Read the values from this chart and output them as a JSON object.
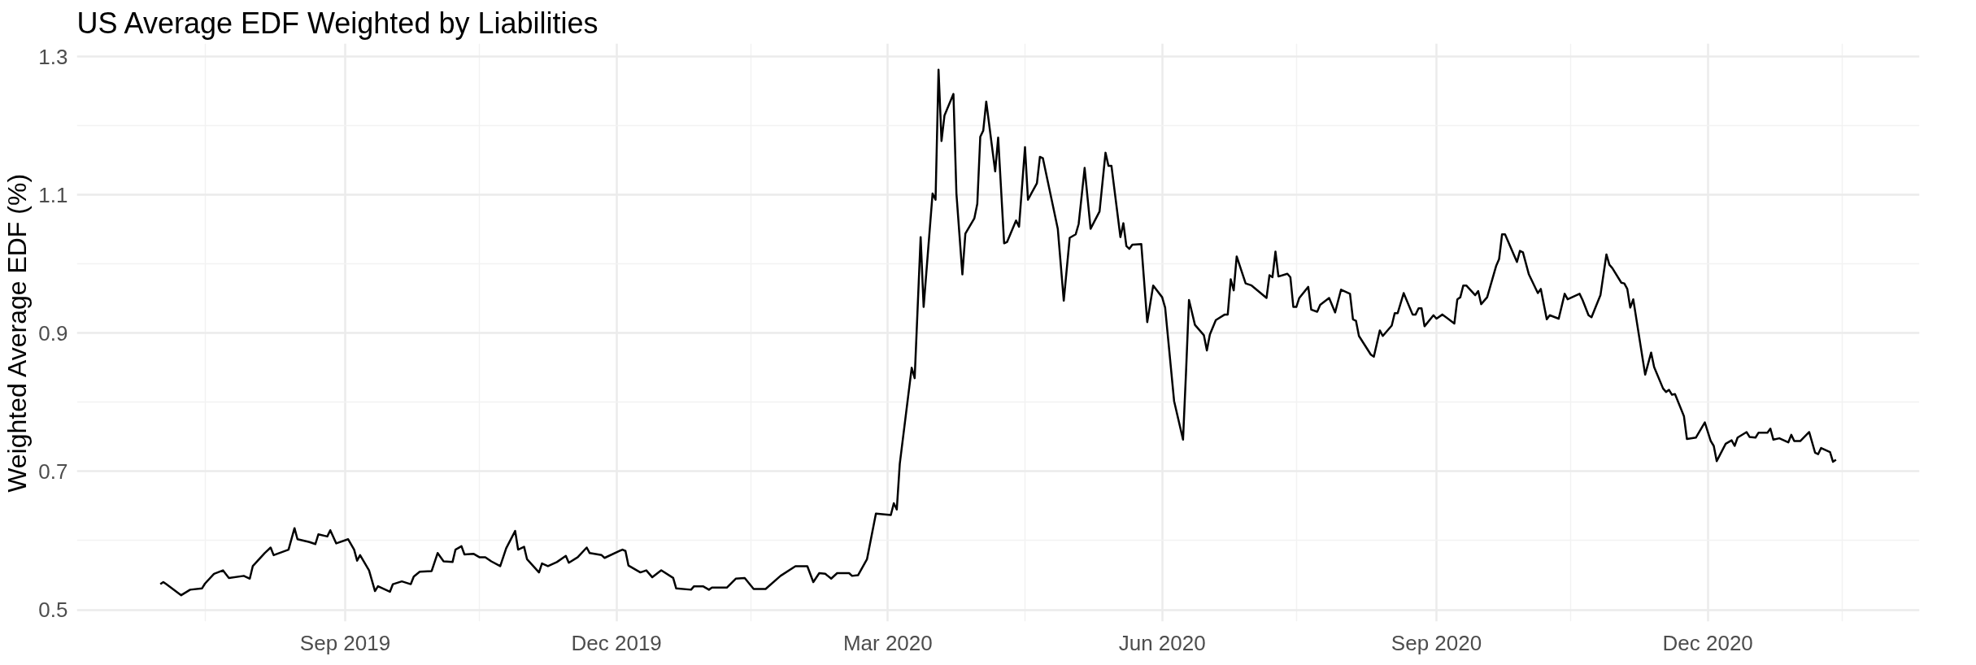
{
  "chart_data": {
    "type": "line",
    "title": "US Average EDF Weighted by Liabilities",
    "ylabel": "Weighted Average EDF (%)",
    "x": [
      "2019-07-01",
      "2019-07-02",
      "2019-07-03",
      "2019-07-08",
      "2019-07-11",
      "2019-07-15",
      "2019-07-16",
      "2019-07-19",
      "2019-07-22",
      "2019-07-24",
      "2019-07-29",
      "2019-07-31",
      "2019-08-01",
      "2019-08-05",
      "2019-08-07",
      "2019-08-08",
      "2019-08-13",
      "2019-08-15",
      "2019-08-16",
      "2019-08-20",
      "2019-08-22",
      "2019-08-23",
      "2019-08-26",
      "2019-08-27",
      "2019-08-29",
      "2019-09-02",
      "2019-09-04",
      "2019-09-05",
      "2019-09-06",
      "2019-09-09",
      "2019-09-11",
      "2019-09-12",
      "2019-09-16",
      "2019-09-17",
      "2019-09-20",
      "2019-09-23",
      "2019-09-24",
      "2019-09-26",
      "2019-09-30",
      "2019-10-02",
      "2019-10-04",
      "2019-10-07",
      "2019-10-08",
      "2019-10-10",
      "2019-10-11",
      "2019-10-14",
      "2019-10-16",
      "2019-10-18",
      "2019-10-20",
      "2019-10-23",
      "2019-10-25",
      "2019-10-28",
      "2019-10-29",
      "2019-10-31",
      "2019-11-01",
      "2019-11-05",
      "2019-11-06",
      "2019-11-08",
      "2019-11-11",
      "2019-11-14",
      "2019-11-15",
      "2019-11-18",
      "2019-11-21",
      "2019-11-22",
      "2019-11-26",
      "2019-11-27",
      "2019-12-03",
      "2019-12-04",
      "2019-12-05",
      "2019-12-09",
      "2019-12-11",
      "2019-12-13",
      "2019-12-16",
      "2019-12-20",
      "2019-12-21",
      "2019-12-26",
      "2019-12-27",
      "2019-12-30",
      "2020-01-01",
      "2020-01-02",
      "2020-01-07",
      "2020-01-10",
      "2020-01-13",
      "2020-01-16",
      "2020-01-20",
      "2020-01-25",
      "2020-01-30",
      "2020-02-03",
      "2020-02-05",
      "2020-02-07",
      "2020-02-09",
      "2020-02-11",
      "2020-02-13",
      "2020-02-17",
      "2020-02-18",
      "2020-02-20",
      "2020-02-23",
      "2020-02-26",
      "2020-03-02",
      "2020-03-03",
      "2020-03-04",
      "2020-03-05",
      "2020-03-09",
      "2020-03-10",
      "2020-03-12",
      "2020-03-13",
      "2020-03-16",
      "2020-03-17",
      "2020-03-18",
      "2020-03-19",
      "2020-03-20",
      "2020-03-23",
      "2020-03-24",
      "2020-03-26",
      "2020-03-27",
      "2020-03-30",
      "2020-03-31",
      "2020-04-01",
      "2020-04-02",
      "2020-04-03",
      "2020-04-06",
      "2020-04-07",
      "2020-04-09",
      "2020-04-10",
      "2020-04-13",
      "2020-04-14",
      "2020-04-16",
      "2020-04-17",
      "2020-04-20",
      "2020-04-21",
      "2020-04-22",
      "2020-04-27",
      "2020-04-29",
      "2020-05-01",
      "2020-05-03",
      "2020-05-04",
      "2020-05-06",
      "2020-05-08",
      "2020-05-11",
      "2020-05-13",
      "2020-05-14",
      "2020-05-15",
      "2020-05-18",
      "2020-05-19",
      "2020-05-20",
      "2020-05-21",
      "2020-05-22",
      "2020-05-25",
      "2020-05-27",
      "2020-05-29",
      "2020-06-01",
      "2020-06-02",
      "2020-06-05",
      "2020-06-08",
      "2020-06-09",
      "2020-06-10",
      "2020-06-12",
      "2020-06-15",
      "2020-06-16",
      "2020-06-17",
      "2020-06-19",
      "2020-06-22",
      "2020-06-23",
      "2020-06-24",
      "2020-06-25",
      "2020-06-26",
      "2020-06-29",
      "2020-07-01",
      "2020-07-06",
      "2020-07-07",
      "2020-07-08",
      "2020-07-09",
      "2020-07-10",
      "2020-07-13",
      "2020-07-14",
      "2020-07-15",
      "2020-07-16",
      "2020-07-17",
      "2020-07-20",
      "2020-07-21",
      "2020-07-23",
      "2020-07-24",
      "2020-07-27",
      "2020-07-29",
      "2020-07-31",
      "2020-08-03",
      "2020-08-04",
      "2020-08-05",
      "2020-08-06",
      "2020-08-10",
      "2020-08-11",
      "2020-08-13",
      "2020-08-14",
      "2020-08-17",
      "2020-08-18",
      "2020-08-19",
      "2020-08-21",
      "2020-08-24",
      "2020-08-25",
      "2020-08-26",
      "2020-08-27",
      "2020-08-28",
      "2020-08-31",
      "2020-09-01",
      "2020-09-03",
      "2020-09-07",
      "2020-09-08",
      "2020-09-09",
      "2020-09-10",
      "2020-09-11",
      "2020-09-14",
      "2020-09-15",
      "2020-09-16",
      "2020-09-18",
      "2020-09-21",
      "2020-09-22",
      "2020-09-23",
      "2020-09-24",
      "2020-09-28",
      "2020-09-29",
      "2020-09-30",
      "2020-10-02",
      "2020-10-05",
      "2020-10-06",
      "2020-10-08",
      "2020-10-09",
      "2020-10-12",
      "2020-10-14",
      "2020-10-15",
      "2020-10-19",
      "2020-10-20",
      "2020-10-22",
      "2020-10-23",
      "2020-10-26",
      "2020-10-28",
      "2020-10-29",
      "2020-10-30",
      "2020-11-02",
      "2020-11-03",
      "2020-11-04",
      "2020-11-05",
      "2020-11-06",
      "2020-11-10",
      "2020-11-12",
      "2020-11-13",
      "2020-11-16",
      "2020-11-17",
      "2020-11-18",
      "2020-11-19",
      "2020-11-20",
      "2020-11-23",
      "2020-11-24",
      "2020-11-27",
      "2020-11-30",
      "2020-12-02",
      "2020-12-03",
      "2020-12-04",
      "2020-12-07",
      "2020-12-09",
      "2020-12-10",
      "2020-12-11",
      "2020-12-14",
      "2020-12-15",
      "2020-12-17",
      "2020-12-18",
      "2020-12-21",
      "2020-12-22",
      "2020-12-23",
      "2020-12-25",
      "2020-12-28",
      "2020-12-29",
      "2020-12-30",
      "2021-01-01",
      "2021-01-04",
      "2021-01-06",
      "2021-01-07",
      "2021-01-08",
      "2021-01-11",
      "2021-01-12",
      "2021-01-13"
    ],
    "series": [
      {
        "color": "#000000",
        "values": [
          0.537,
          0.54,
          0.537,
          0.521,
          0.529,
          0.531,
          0.538,
          0.552,
          0.557,
          0.546,
          0.549,
          0.545,
          0.563,
          0.582,
          0.59,
          0.579,
          0.587,
          0.618,
          0.602,
          0.598,
          0.595,
          0.609,
          0.606,
          0.615,
          0.596,
          0.602,
          0.587,
          0.571,
          0.579,
          0.557,
          0.527,
          0.534,
          0.526,
          0.537,
          0.541,
          0.537,
          0.548,
          0.555,
          0.556,
          0.582,
          0.57,
          0.569,
          0.587,
          0.592,
          0.58,
          0.581,
          0.576,
          0.576,
          0.57,
          0.563,
          0.589,
          0.614,
          0.587,
          0.591,
          0.573,
          0.554,
          0.567,
          0.563,
          0.569,
          0.578,
          0.568,
          0.576,
          0.59,
          0.582,
          0.579,
          0.575,
          0.587,
          0.585,
          0.564,
          0.554,
          0.557,
          0.547,
          0.557,
          0.546,
          0.531,
          0.529,
          0.534,
          0.534,
          0.529,
          0.532,
          0.532,
          0.545,
          0.546,
          0.53,
          0.53,
          0.549,
          0.563,
          0.563,
          0.54,
          0.553,
          0.552,
          0.545,
          0.553,
          0.553,
          0.549,
          0.55,
          0.573,
          0.639,
          0.637,
          0.654,
          0.645,
          0.711,
          0.85,
          0.835,
          1.039,
          0.938,
          1.102,
          1.093,
          1.281,
          1.178,
          1.215,
          1.246,
          1.102,
          0.985,
          1.044,
          1.066,
          1.087,
          1.184,
          1.193,
          1.235,
          1.134,
          1.183,
          1.03,
          1.032,
          1.063,
          1.054,
          1.169,
          1.093,
          1.117,
          1.155,
          1.153,
          1.051,
          0.947,
          1.038,
          1.043,
          1.058,
          1.139,
          1.051,
          1.076,
          1.161,
          1.142,
          1.142,
          1.039,
          1.059,
          1.026,
          1.022,
          1.028,
          1.029,
          0.916,
          0.969,
          0.952,
          0.937,
          0.802,
          0.746,
          0.843,
          0.948,
          0.912,
          0.897,
          0.875,
          0.898,
          0.919,
          0.927,
          0.927,
          0.978,
          0.962,
          1.011,
          0.972,
          0.969,
          0.951,
          0.984,
          0.981,
          1.018,
          0.982,
          0.986,
          0.981,
          0.938,
          0.938,
          0.951,
          0.967,
          0.934,
          0.931,
          0.941,
          0.951,
          0.93,
          0.963,
          0.957,
          0.92,
          0.918,
          0.896,
          0.869,
          0.866,
          0.904,
          0.896,
          0.911,
          0.929,
          0.929,
          0.958,
          0.927,
          0.927,
          0.936,
          0.936,
          0.91,
          0.926,
          0.921,
          0.927,
          0.914,
          0.949,
          0.952,
          0.969,
          0.969,
          0.955,
          0.961,
          0.942,
          0.952,
          0.997,
          1.007,
          1.043,
          1.043,
          1.003,
          1.019,
          1.017,
          0.985,
          0.958,
          0.964,
          0.92,
          0.926,
          0.921,
          0.957,
          0.949,
          0.957,
          0.948,
          0.926,
          0.923,
          0.955,
          1.014,
          0.999,
          0.994,
          0.973,
          0.972,
          0.964,
          0.937,
          0.949,
          0.84,
          0.872,
          0.851,
          0.82,
          0.815,
          0.818,
          0.811,
          0.812,
          0.78,
          0.747,
          0.749,
          0.771,
          0.744,
          0.737,
          0.715,
          0.74,
          0.745,
          0.737,
          0.749,
          0.757,
          0.75,
          0.749,
          0.756,
          0.756,
          0.762,
          0.746,
          0.748,
          0.742,
          0.753,
          0.744,
          0.744,
          0.757,
          0.727,
          0.725,
          0.734,
          0.728,
          0.714,
          0.717
        ]
      }
    ],
    "xlim": [
      "2019-06-03",
      "2021-02-10"
    ],
    "xticks": [
      {
        "value": "2019-07-16",
        "label": null
      },
      {
        "value": "2019-09-01",
        "label": "Sep 2019"
      },
      {
        "value": "2019-10-16",
        "label": null
      },
      {
        "value": "2019-12-01",
        "label": "Dec 2019"
      },
      {
        "value": "2020-01-15",
        "label": null
      },
      {
        "value": "2020-03-01",
        "label": "Mar 2020"
      },
      {
        "value": "2020-04-16",
        "label": null
      },
      {
        "value": "2020-06-01",
        "label": "Jun 2020"
      },
      {
        "value": "2020-07-16",
        "label": null
      },
      {
        "value": "2020-09-01",
        "label": "Sep 2020"
      },
      {
        "value": "2020-10-16",
        "label": null
      },
      {
        "value": "2020-12-01",
        "label": "Dec 2020"
      },
      {
        "value": "2021-01-15",
        "label": null
      }
    ],
    "ylim": [
      0.483,
      1.319
    ],
    "yticks": [
      0.5,
      {
        "value": 0.6,
        "label": null
      },
      0.7,
      {
        "value": 0.8,
        "label": null
      },
      0.9,
      {
        "value": 1.0,
        "label": null
      },
      1.1,
      {
        "value": 1.2,
        "label": null
      },
      1.3
    ],
    "grid": true,
    "line_style": "solid",
    "marker": "none"
  }
}
